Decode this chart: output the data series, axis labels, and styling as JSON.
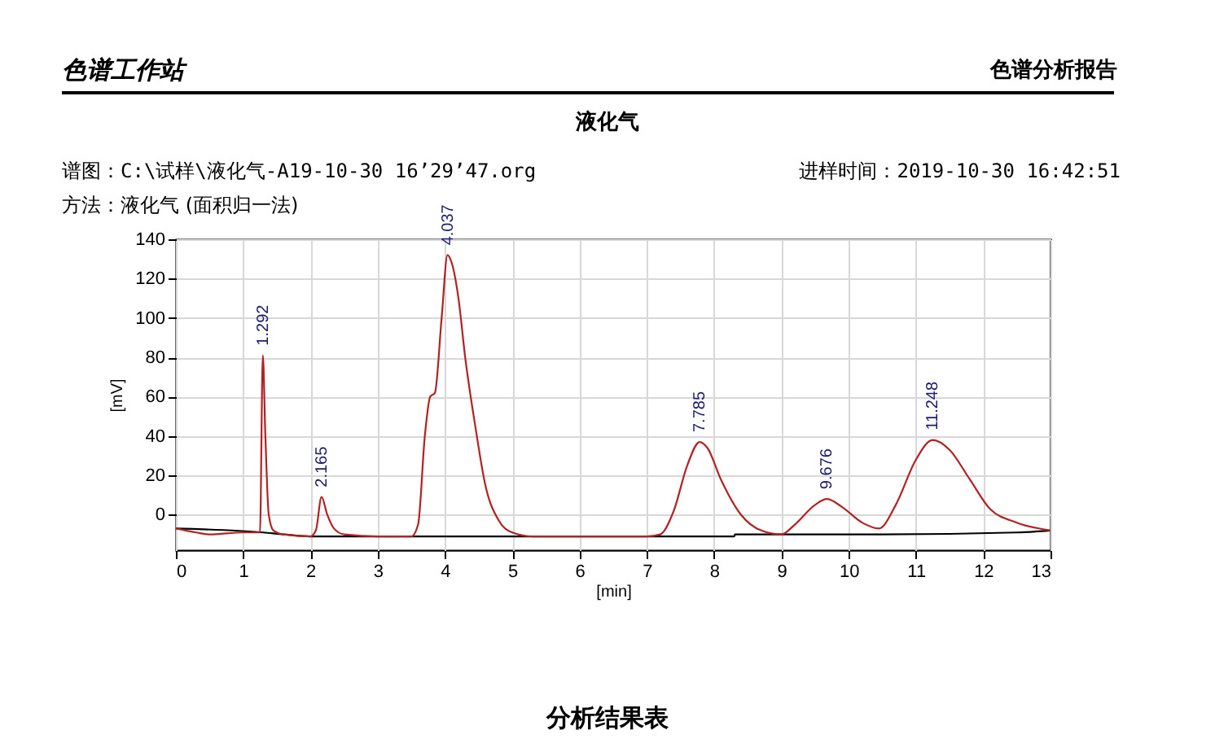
{
  "chart_data": {
    "type": "line",
    "title": "液化气",
    "xlabel": "[min]",
    "ylabel": "[mV]",
    "xlim": [
      0,
      13
    ],
    "xticks": [
      0,
      1,
      2,
      3,
      4,
      5,
      6,
      7,
      8,
      9,
      10,
      11,
      12,
      13
    ],
    "ylim": [
      -18,
      140
    ],
    "yticks": [
      0,
      20,
      40,
      60,
      80,
      100,
      120,
      140
    ],
    "grid": true,
    "series": [
      {
        "color": "#000000",
        "x": [
          0,
          1.3,
          1.6,
          2,
          5,
          7.2,
          8.3,
          8.31,
          9,
          10.5,
          12.5,
          13
        ],
        "values": [
          -7,
          -9,
          -10,
          -11,
          -11,
          -11,
          -11,
          -10,
          -10,
          -10,
          -9,
          -8
        ]
      },
      {
        "color": "#b22222",
        "x": [
          0,
          0.3,
          0.5,
          1.0,
          1.25,
          1.292,
          1.33,
          1.38,
          1.45,
          1.6,
          2.0,
          2.08,
          2.165,
          2.25,
          2.35,
          2.5,
          3.0,
          3.5,
          3.6,
          3.7,
          3.78,
          3.85,
          3.95,
          4.037,
          4.1,
          4.2,
          4.3,
          4.45,
          4.6,
          4.8,
          5.0,
          5.3,
          6,
          7,
          7.2,
          7.4,
          7.6,
          7.785,
          7.9,
          8.1,
          8.4,
          8.7,
          9.0,
          9.2,
          9.5,
          9.676,
          9.9,
          10.2,
          10.45,
          10.7,
          11.0,
          11.248,
          11.5,
          11.8,
          12.1,
          12.5,
          13
        ],
        "values": [
          -7,
          -9,
          -10,
          -9,
          -9,
          81,
          40,
          0,
          -8,
          -10,
          -11,
          -8,
          9,
          0,
          -7,
          -10,
          -11,
          -11,
          -5,
          40,
          60,
          62,
          100,
          132,
          128,
          110,
          80,
          45,
          15,
          -3,
          -9,
          -11,
          -11,
          -11,
          -10,
          2,
          25,
          37,
          34,
          18,
          0,
          -8,
          -10,
          -5,
          5,
          8,
          4,
          -4,
          -7,
          5,
          28,
          38,
          33,
          18,
          3,
          -4,
          -8
        ]
      }
    ],
    "annotations": [
      "色谱工作站",
      "色谱分析报告",
      "谱图：C:\\试样\\液化气-A19-10-30 16’29’47.org",
      "进样时间：2019-10-30 16:42:51",
      "方法：液化气 (面积归一法)",
      "分析结果表",
      {
        "text": "1.292",
        "x": 1.292,
        "y": 81
      },
      {
        "text": "2.165",
        "x": 2.165,
        "y": 9
      },
      {
        "text": "4.037",
        "x": 4.037,
        "y": 132
      },
      {
        "text": "7.785",
        "x": 7.785,
        "y": 37
      },
      {
        "text": "9.676",
        "x": 9.676,
        "y": 8
      },
      {
        "text": "11.248",
        "x": 11.248,
        "y": 38
      }
    ]
  }
}
